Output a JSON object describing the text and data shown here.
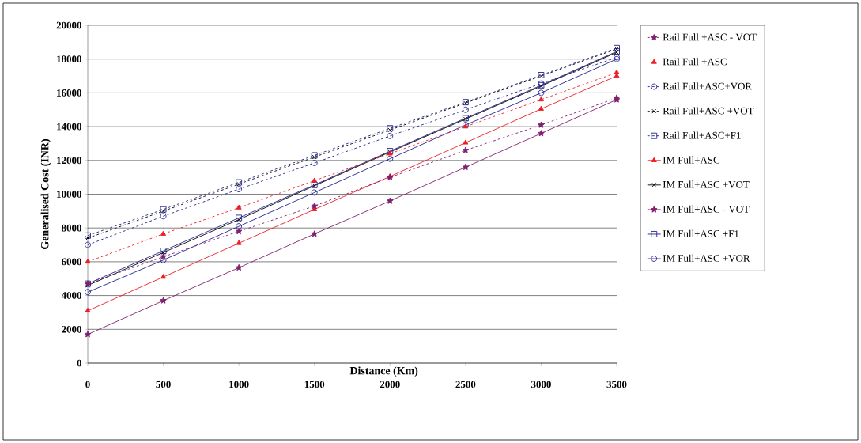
{
  "chart_data": {
    "type": "line",
    "xlabel": "Distance (Km)",
    "ylabel": "Generalised Cost (INR)",
    "x": [
      0,
      500,
      1000,
      1500,
      2000,
      2500,
      3000,
      3500
    ],
    "xlim": [
      0,
      3500
    ],
    "xticks": [
      0,
      500,
      1000,
      1500,
      2000,
      2500,
      3000,
      3500
    ],
    "ylim": [
      0,
      20000
    ],
    "yticks": [
      0,
      2000,
      4000,
      6000,
      8000,
      10000,
      12000,
      14000,
      16000,
      18000,
      20000
    ],
    "grid": "y",
    "legend": "right",
    "series": [
      {
        "name": "Rail Full +ASC - VOT",
        "color": "#7f1f6f",
        "marker": "star",
        "line_style": "dashed",
        "values": [
          4700,
          6300,
          7800,
          9300,
          11000,
          12600,
          14100,
          15700
        ]
      },
      {
        "name": "Rail Full +ASC",
        "color": "#ee1c25",
        "marker": "triangle",
        "line_style": "dashed",
        "values": [
          6000,
          7650,
          9200,
          10800,
          12400,
          14000,
          15600,
          17200
        ]
      },
      {
        "name": "Rail Full+ASC+VOR",
        "color": "#1f1f8f",
        "marker": "circle",
        "line_style": "dashed",
        "values": [
          7000,
          8700,
          10300,
          11850,
          13450,
          15000,
          16550,
          18100
        ]
      },
      {
        "name": "Rail Full+ASC +VOT",
        "color": "#000000",
        "marker": "cross",
        "line_style": "dashed",
        "values": [
          7400,
          9000,
          10600,
          12200,
          13800,
          15400,
          17000,
          18600
        ]
      },
      {
        "name": "Rail Full+ASC+F1",
        "color": "#1f1f8f",
        "marker": "square",
        "line_style": "dashed",
        "values": [
          7550,
          9100,
          10700,
          12300,
          13900,
          15450,
          17050,
          18650
        ]
      },
      {
        "name": "IM Full+ASC",
        "color": "#ee1c25",
        "marker": "triangle",
        "line_style": "solid",
        "values": [
          3100,
          5100,
          7100,
          9100,
          11050,
          13050,
          15050,
          17000
        ]
      },
      {
        "name": "IM Full+ASC +VOT",
        "color": "#000000",
        "marker": "cross",
        "line_style": "solid",
        "values": [
          4600,
          6550,
          8500,
          10500,
          12500,
          14450,
          16400,
          18400
        ]
      },
      {
        "name": "IM Full+ASC - VOT",
        "color": "#7f1f6f",
        "marker": "star",
        "line_style": "solid",
        "values": [
          1700,
          3700,
          5650,
          7650,
          9600,
          11600,
          13600,
          15600
        ]
      },
      {
        "name": "IM Full+ASC +F1",
        "color": "#1f1f8f",
        "marker": "square",
        "line_style": "solid",
        "values": [
          4700,
          6650,
          8600,
          10550,
          12550,
          14500,
          16450,
          18450
        ]
      },
      {
        "name": "IM Full+ASC +VOR",
        "color": "#1f1f8f",
        "marker": "circle",
        "line_style": "solid",
        "values": [
          4200,
          6100,
          8100,
          10100,
          12100,
          14100,
          16000,
          18000
        ]
      }
    ]
  }
}
